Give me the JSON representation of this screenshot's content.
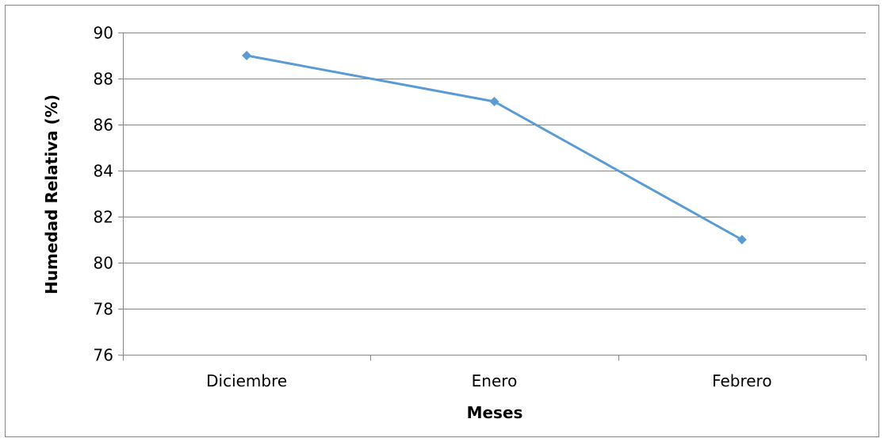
{
  "chart_data": {
    "type": "line",
    "categories": [
      "Diciembre",
      "Enero",
      "Febrero"
    ],
    "series": [
      {
        "values": [
          89,
          87,
          81
        ],
        "color": "#5b9bd5",
        "marker": "diamond"
      }
    ],
    "xlabel": "Meses",
    "ylabel": "Humedad Relativa (%)",
    "ylim": [
      76,
      90
    ],
    "yticks": [
      76,
      78,
      80,
      82,
      84,
      86,
      88,
      90
    ],
    "grid": "horizontal",
    "legend": "none"
  }
}
